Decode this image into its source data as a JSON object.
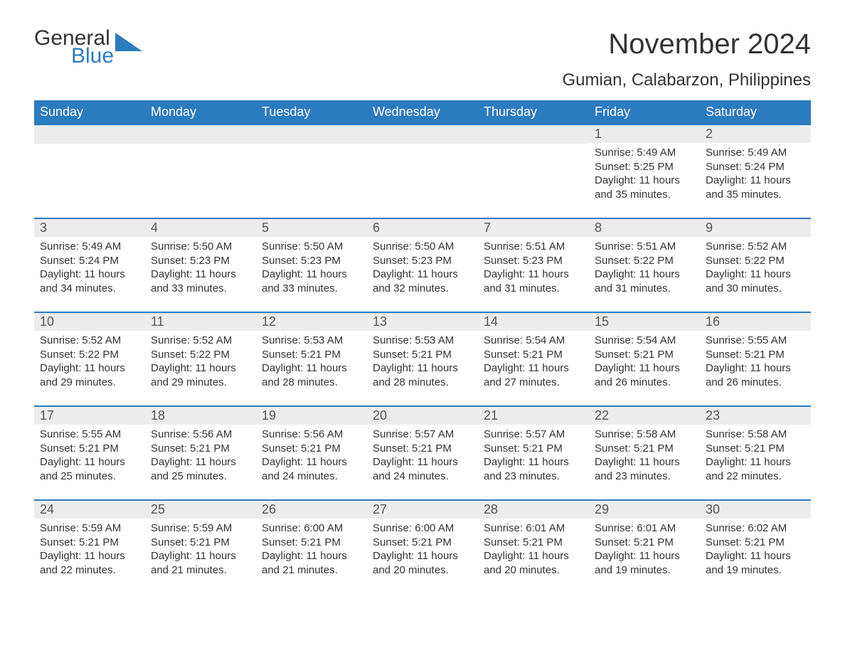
{
  "logo": {
    "text1": "General",
    "text2": "Blue",
    "shape_color": "#2b7bbf"
  },
  "title": "November 2024",
  "location": "Gumian, Calabarzon, Philippines",
  "colors": {
    "header_bg": "#2b7bbf",
    "header_text": "#ffffff",
    "daynum_bg": "#ececec",
    "row_border": "#2b7bbf",
    "body_text": "#333333",
    "page_bg": "#ffffff"
  },
  "fonts": {
    "title_size": 40,
    "location_size": 24,
    "th_size": 18,
    "daynum_size": 18,
    "body_size": 15
  },
  "day_names": [
    "Sunday",
    "Monday",
    "Tuesday",
    "Wednesday",
    "Thursday",
    "Friday",
    "Saturday"
  ],
  "weeks": [
    [
      null,
      null,
      null,
      null,
      null,
      {
        "n": "1",
        "sunrise": "Sunrise: 5:49 AM",
        "sunset": "Sunset: 5:25 PM",
        "daylight": "Daylight: 11 hours and 35 minutes."
      },
      {
        "n": "2",
        "sunrise": "Sunrise: 5:49 AM",
        "sunset": "Sunset: 5:24 PM",
        "daylight": "Daylight: 11 hours and 35 minutes."
      }
    ],
    [
      {
        "n": "3",
        "sunrise": "Sunrise: 5:49 AM",
        "sunset": "Sunset: 5:24 PM",
        "daylight": "Daylight: 11 hours and 34 minutes."
      },
      {
        "n": "4",
        "sunrise": "Sunrise: 5:50 AM",
        "sunset": "Sunset: 5:23 PM",
        "daylight": "Daylight: 11 hours and 33 minutes."
      },
      {
        "n": "5",
        "sunrise": "Sunrise: 5:50 AM",
        "sunset": "Sunset: 5:23 PM",
        "daylight": "Daylight: 11 hours and 33 minutes."
      },
      {
        "n": "6",
        "sunrise": "Sunrise: 5:50 AM",
        "sunset": "Sunset: 5:23 PM",
        "daylight": "Daylight: 11 hours and 32 minutes."
      },
      {
        "n": "7",
        "sunrise": "Sunrise: 5:51 AM",
        "sunset": "Sunset: 5:23 PM",
        "daylight": "Daylight: 11 hours and 31 minutes."
      },
      {
        "n": "8",
        "sunrise": "Sunrise: 5:51 AM",
        "sunset": "Sunset: 5:22 PM",
        "daylight": "Daylight: 11 hours and 31 minutes."
      },
      {
        "n": "9",
        "sunrise": "Sunrise: 5:52 AM",
        "sunset": "Sunset: 5:22 PM",
        "daylight": "Daylight: 11 hours and 30 minutes."
      }
    ],
    [
      {
        "n": "10",
        "sunrise": "Sunrise: 5:52 AM",
        "sunset": "Sunset: 5:22 PM",
        "daylight": "Daylight: 11 hours and 29 minutes."
      },
      {
        "n": "11",
        "sunrise": "Sunrise: 5:52 AM",
        "sunset": "Sunset: 5:22 PM",
        "daylight": "Daylight: 11 hours and 29 minutes."
      },
      {
        "n": "12",
        "sunrise": "Sunrise: 5:53 AM",
        "sunset": "Sunset: 5:21 PM",
        "daylight": "Daylight: 11 hours and 28 minutes."
      },
      {
        "n": "13",
        "sunrise": "Sunrise: 5:53 AM",
        "sunset": "Sunset: 5:21 PM",
        "daylight": "Daylight: 11 hours and 28 minutes."
      },
      {
        "n": "14",
        "sunrise": "Sunrise: 5:54 AM",
        "sunset": "Sunset: 5:21 PM",
        "daylight": "Daylight: 11 hours and 27 minutes."
      },
      {
        "n": "15",
        "sunrise": "Sunrise: 5:54 AM",
        "sunset": "Sunset: 5:21 PM",
        "daylight": "Daylight: 11 hours and 26 minutes."
      },
      {
        "n": "16",
        "sunrise": "Sunrise: 5:55 AM",
        "sunset": "Sunset: 5:21 PM",
        "daylight": "Daylight: 11 hours and 26 minutes."
      }
    ],
    [
      {
        "n": "17",
        "sunrise": "Sunrise: 5:55 AM",
        "sunset": "Sunset: 5:21 PM",
        "daylight": "Daylight: 11 hours and 25 minutes."
      },
      {
        "n": "18",
        "sunrise": "Sunrise: 5:56 AM",
        "sunset": "Sunset: 5:21 PM",
        "daylight": "Daylight: 11 hours and 25 minutes."
      },
      {
        "n": "19",
        "sunrise": "Sunrise: 5:56 AM",
        "sunset": "Sunset: 5:21 PM",
        "daylight": "Daylight: 11 hours and 24 minutes."
      },
      {
        "n": "20",
        "sunrise": "Sunrise: 5:57 AM",
        "sunset": "Sunset: 5:21 PM",
        "daylight": "Daylight: 11 hours and 24 minutes."
      },
      {
        "n": "21",
        "sunrise": "Sunrise: 5:57 AM",
        "sunset": "Sunset: 5:21 PM",
        "daylight": "Daylight: 11 hours and 23 minutes."
      },
      {
        "n": "22",
        "sunrise": "Sunrise: 5:58 AM",
        "sunset": "Sunset: 5:21 PM",
        "daylight": "Daylight: 11 hours and 23 minutes."
      },
      {
        "n": "23",
        "sunrise": "Sunrise: 5:58 AM",
        "sunset": "Sunset: 5:21 PM",
        "daylight": "Daylight: 11 hours and 22 minutes."
      }
    ],
    [
      {
        "n": "24",
        "sunrise": "Sunrise: 5:59 AM",
        "sunset": "Sunset: 5:21 PM",
        "daylight": "Daylight: 11 hours and 22 minutes."
      },
      {
        "n": "25",
        "sunrise": "Sunrise: 5:59 AM",
        "sunset": "Sunset: 5:21 PM",
        "daylight": "Daylight: 11 hours and 21 minutes."
      },
      {
        "n": "26",
        "sunrise": "Sunrise: 6:00 AM",
        "sunset": "Sunset: 5:21 PM",
        "daylight": "Daylight: 11 hours and 21 minutes."
      },
      {
        "n": "27",
        "sunrise": "Sunrise: 6:00 AM",
        "sunset": "Sunset: 5:21 PM",
        "daylight": "Daylight: 11 hours and 20 minutes."
      },
      {
        "n": "28",
        "sunrise": "Sunrise: 6:01 AM",
        "sunset": "Sunset: 5:21 PM",
        "daylight": "Daylight: 11 hours and 20 minutes."
      },
      {
        "n": "29",
        "sunrise": "Sunrise: 6:01 AM",
        "sunset": "Sunset: 5:21 PM",
        "daylight": "Daylight: 11 hours and 19 minutes."
      },
      {
        "n": "30",
        "sunrise": "Sunrise: 6:02 AM",
        "sunset": "Sunset: 5:21 PM",
        "daylight": "Daylight: 11 hours and 19 minutes."
      }
    ]
  ]
}
